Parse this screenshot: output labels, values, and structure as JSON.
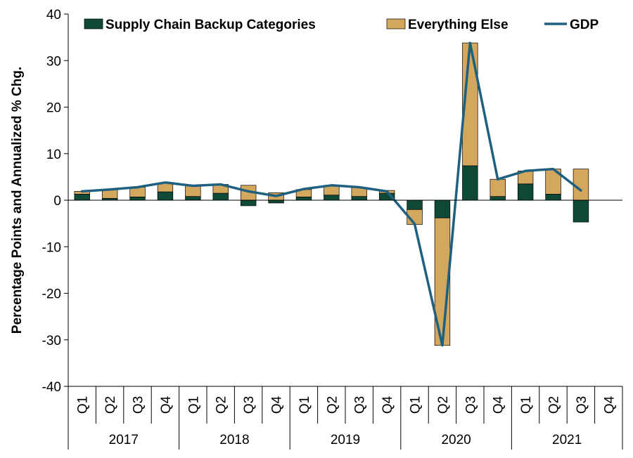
{
  "chart_data": {
    "type": "bar",
    "stacked": true,
    "ylabel": "Percentage Points and Annualized % Chg.",
    "ylim": [
      -40,
      40
    ],
    "yticks": [
      40,
      30,
      20,
      10,
      0,
      -10,
      -20,
      -30,
      -40
    ],
    "categories": [
      "Q1",
      "Q2",
      "Q3",
      "Q4",
      "Q1",
      "Q2",
      "Q3",
      "Q4",
      "Q1",
      "Q2",
      "Q3",
      "Q4",
      "Q1",
      "Q2",
      "Q3",
      "Q4",
      "Q1",
      "Q2",
      "Q3",
      "Q4"
    ],
    "years": [
      "2017",
      "2018",
      "2019",
      "2020",
      "2021"
    ],
    "series": [
      {
        "name": "Supply Chain Backup Categories",
        "kind": "bar",
        "color": "#0f4a39",
        "values": [
          1.3,
          0.4,
          0.7,
          1.8,
          0.8,
          1.5,
          -1.2,
          -0.6,
          0.7,
          1.1,
          0.8,
          1.5,
          -2.0,
          -3.8,
          7.4,
          0.8,
          3.5,
          1.3,
          -4.7,
          null
        ]
      },
      {
        "name": "Everything Else",
        "kind": "bar",
        "color": "#d4a75e",
        "values": [
          0.6,
          1.9,
          2.1,
          1.9,
          2.3,
          1.9,
          3.2,
          1.6,
          1.6,
          2.1,
          1.9,
          0.6,
          -3.2,
          -27.4,
          26.4,
          3.7,
          2.8,
          5.4,
          6.7,
          null
        ]
      },
      {
        "name": "GDP",
        "kind": "line",
        "color": "#1f6080",
        "values": [
          1.9,
          2.3,
          2.8,
          3.8,
          3.1,
          3.4,
          1.9,
          0.9,
          2.4,
          3.2,
          2.8,
          1.9,
          -5.1,
          -31.2,
          33.8,
          4.5,
          6.3,
          6.7,
          2.1,
          null
        ]
      }
    ],
    "grid": false,
    "legend_position": "top"
  }
}
